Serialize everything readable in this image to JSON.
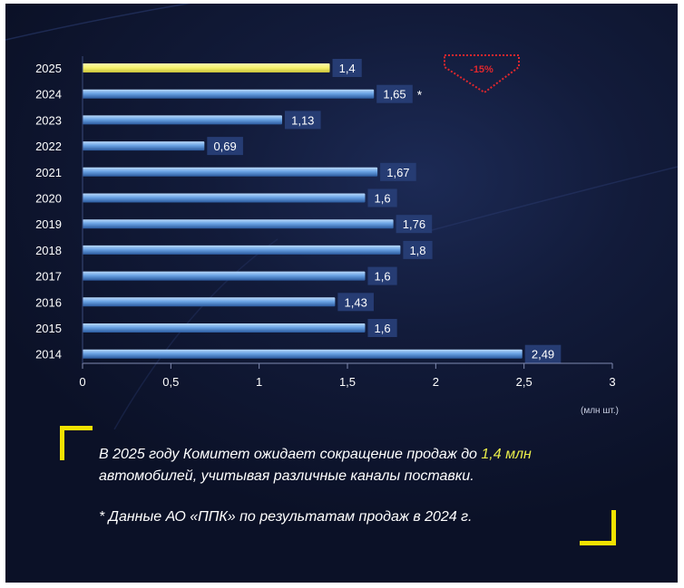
{
  "chart_data": {
    "type": "bar",
    "orientation": "horizontal",
    "categories": [
      "2025",
      "2024",
      "2023",
      "2022",
      "2021",
      "2020",
      "2019",
      "2018",
      "2017",
      "2016",
      "2015",
      "2014"
    ],
    "values": [
      1.4,
      1.65,
      1.13,
      0.69,
      1.67,
      1.6,
      1.76,
      1.8,
      1.6,
      1.43,
      1.6,
      2.49
    ],
    "value_labels": [
      "1,4",
      "1,65",
      "1,13",
      "0,69",
      "1,67",
      "1,6",
      "1,76",
      "1,8",
      "1,6",
      "1,43",
      "1,6",
      "2,49"
    ],
    "x_ticks": [
      0,
      0.5,
      1,
      1.5,
      2,
      2.5,
      3
    ],
    "x_tick_labels": [
      "0",
      "0,5",
      "1",
      "1,5",
      "2",
      "2,5",
      "3"
    ],
    "xlim": [
      0,
      3
    ],
    "unit_label": "(млн шт.)",
    "highlight_category": "2025",
    "highlight_color": "#f4f06a",
    "bar_color": "#5f95d8",
    "label_bg_color": "#263c73",
    "asterisk_note": "*",
    "asterisk_category": "2024",
    "badge": {
      "text": "-15%",
      "color": "#e0272d"
    },
    "grid": false
  },
  "caption": {
    "line1_prefix": "В 2025 году Комитет ожидает сокращение продаж до ",
    "line1_highlight": "1,4 млн",
    "line2": "автомобилей, учитывая различные каналы поставки.",
    "footnote": "* Данные АО «ППК» по результатам продаж в 2024 г."
  },
  "colors": {
    "accent_yellow": "#f2e200",
    "highlight_text": "#e8ec4a"
  }
}
